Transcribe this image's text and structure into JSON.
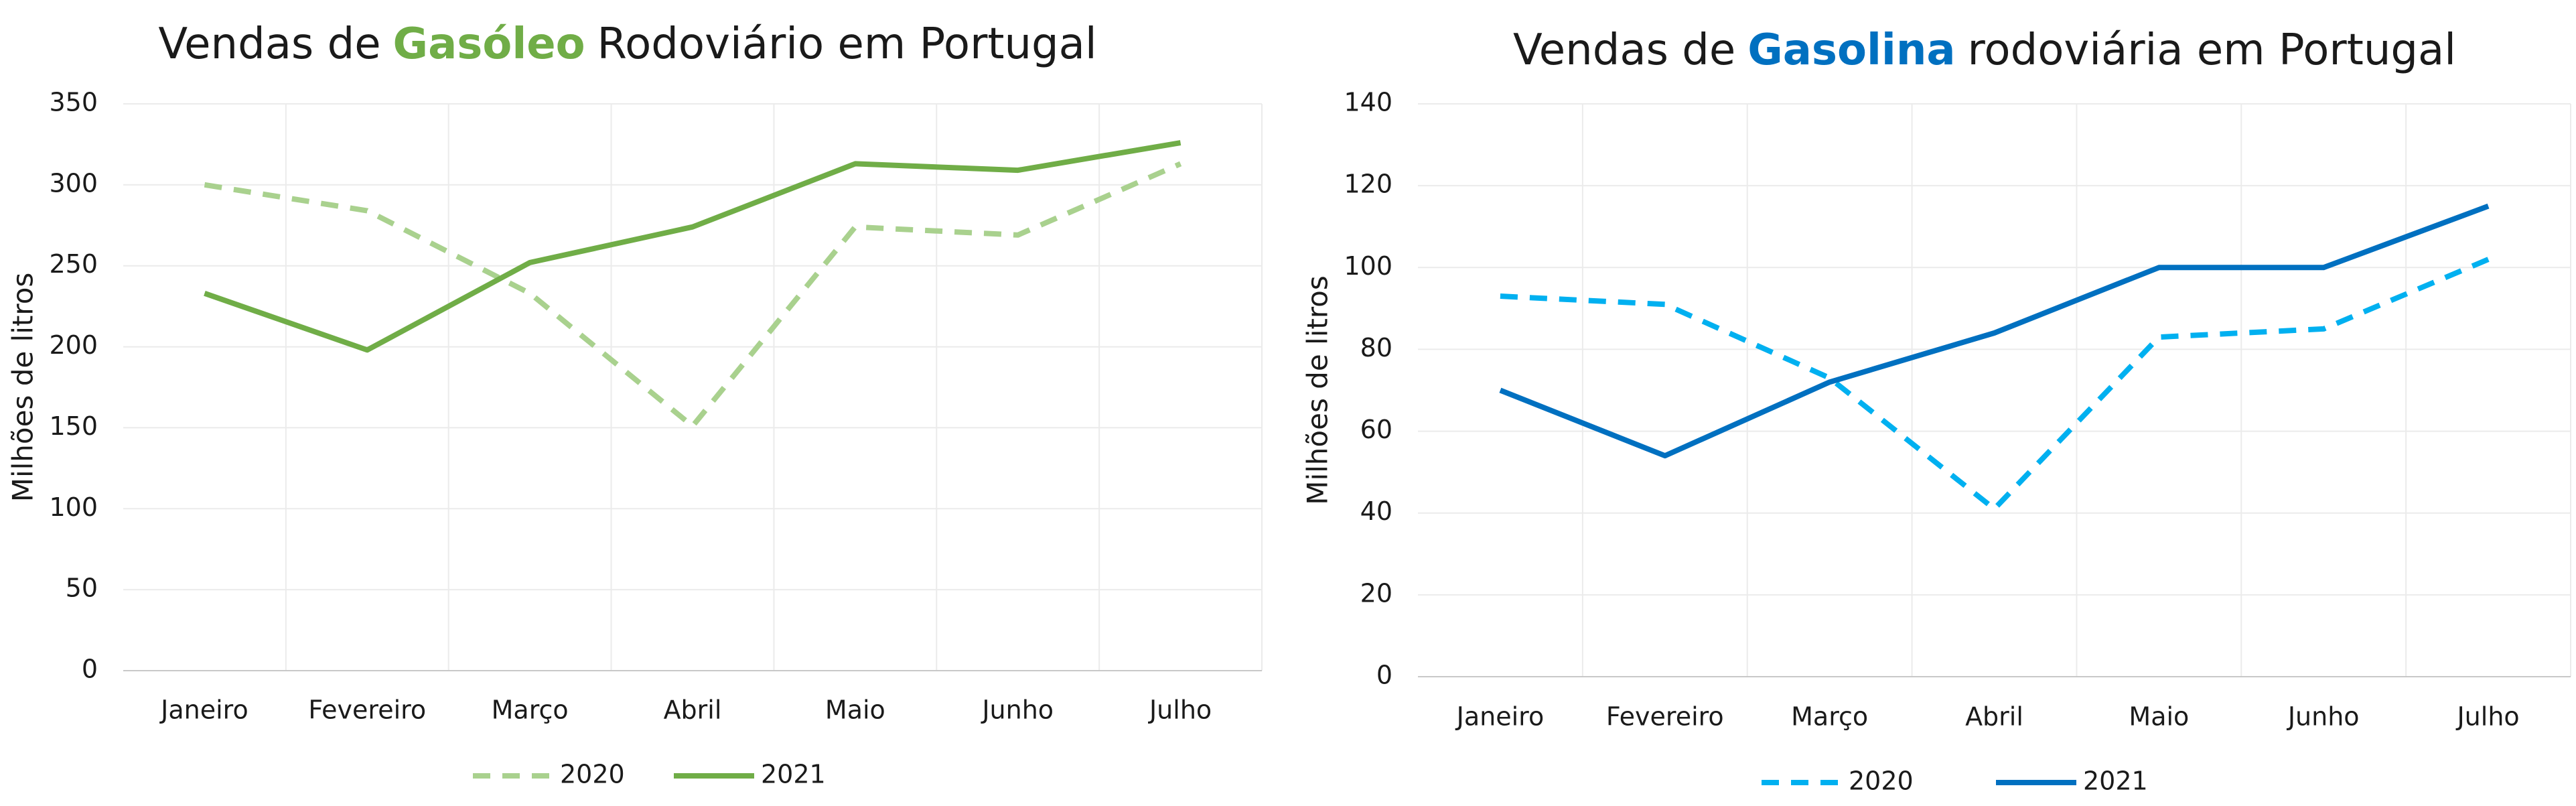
{
  "chart_data": [
    {
      "type": "line",
      "title": {
        "prefix": "Vendas de",
        "highlight": "Gasóleo",
        "suffix": "Rodoviário em Portugal",
        "highlight_color": "#70ad47"
      },
      "y_label": "Milhões de litros",
      "categories": [
        "Janeiro",
        "Fevereiro",
        "Março",
        "Abril",
        "Maio",
        "Junho",
        "Julho"
      ],
      "ylim": [
        0,
        350
      ],
      "yticks": [
        0,
        50,
        100,
        150,
        200,
        250,
        300,
        350
      ],
      "grid": true,
      "series": [
        {
          "name": "2020",
          "color": "#a9d18e",
          "dashed": true,
          "values": [
            300,
            284,
            233,
            151,
            274,
            269,
            313
          ]
        },
        {
          "name": "2021",
          "color": "#70ad47",
          "dashed": false,
          "values": [
            233,
            198,
            252,
            274,
            313,
            309,
            326
          ]
        }
      ]
    },
    {
      "type": "line",
      "title": {
        "prefix": "Vendas de",
        "highlight": "Gasolina",
        "suffix": "rodoviária em Portugal",
        "highlight_color": "#0070c0"
      },
      "y_label": "Milhões de litros",
      "categories": [
        "Janeiro",
        "Fevereiro",
        "Março",
        "Abril",
        "Maio",
        "Junho",
        "Julho"
      ],
      "ylim": [
        0,
        140
      ],
      "yticks": [
        0,
        20,
        40,
        60,
        80,
        100,
        120,
        140
      ],
      "grid": true,
      "series": [
        {
          "name": "2020",
          "color": "#00b0f0",
          "dashed": true,
          "values": [
            93,
            91,
            73,
            41,
            83,
            85,
            102
          ]
        },
        {
          "name": "2021",
          "color": "#0070c0",
          "dashed": false,
          "values": [
            70,
            54,
            72,
            84,
            100,
            100,
            115
          ]
        }
      ]
    }
  ]
}
